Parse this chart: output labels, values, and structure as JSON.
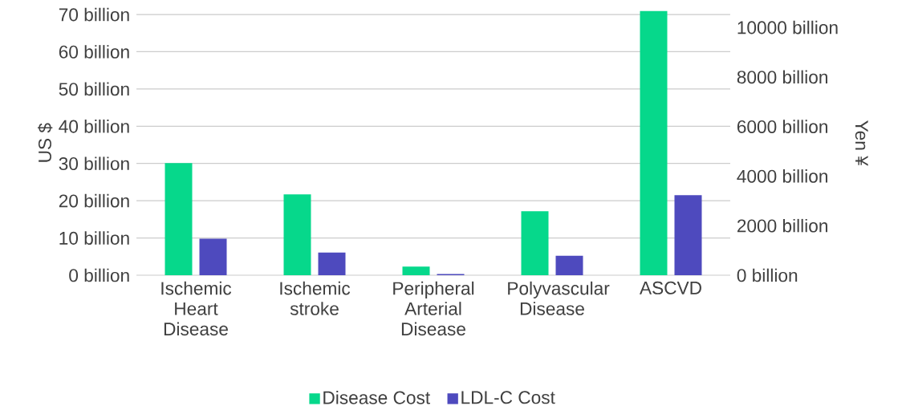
{
  "chart_data": {
    "type": "bar",
    "ylabel": "US $",
    "y2label": "Yen ¥",
    "categories": [
      "Ischemic Heart Disease",
      "Ischemic stroke",
      "Peripheral Arterial Disease",
      "Polyvascular Disease",
      "ASCVD"
    ],
    "series": [
      {
        "name": "Disease Cost",
        "color": "#06d88b",
        "values": [
          30.1,
          21.7,
          2.3,
          17.2,
          71
        ]
      },
      {
        "name": "LDL-C Cost",
        "color": "#4e4abe",
        "values": [
          9.8,
          6.1,
          0.3,
          5.2,
          21.5
        ]
      }
    ],
    "ylim": [
      0,
      71
    ],
    "yticks": [
      {
        "value": 0,
        "label": "0 billion"
      },
      {
        "value": 10,
        "label": "10 billion"
      },
      {
        "value": 20,
        "label": "20 billion"
      },
      {
        "value": 30,
        "label": "30 billion"
      },
      {
        "value": 40,
        "label": "40 billion"
      },
      {
        "value": 50,
        "label": "50 billion"
      },
      {
        "value": 60,
        "label": "60 billion"
      },
      {
        "value": 70,
        "label": "70 billion"
      }
    ],
    "y2lim": [
      0,
      10670
    ],
    "y2ticks": [
      {
        "value": 0,
        "label": "0 billion"
      },
      {
        "value": 2000,
        "label": "2000 billion"
      },
      {
        "value": 4000,
        "label": "4000 billion"
      },
      {
        "value": 6000,
        "label": "6000 billion"
      },
      {
        "value": 8000,
        "label": "8000 billion"
      },
      {
        "value": 10000,
        "label": "10000 billion"
      }
    ],
    "grid": "y",
    "legend": "bottom"
  }
}
